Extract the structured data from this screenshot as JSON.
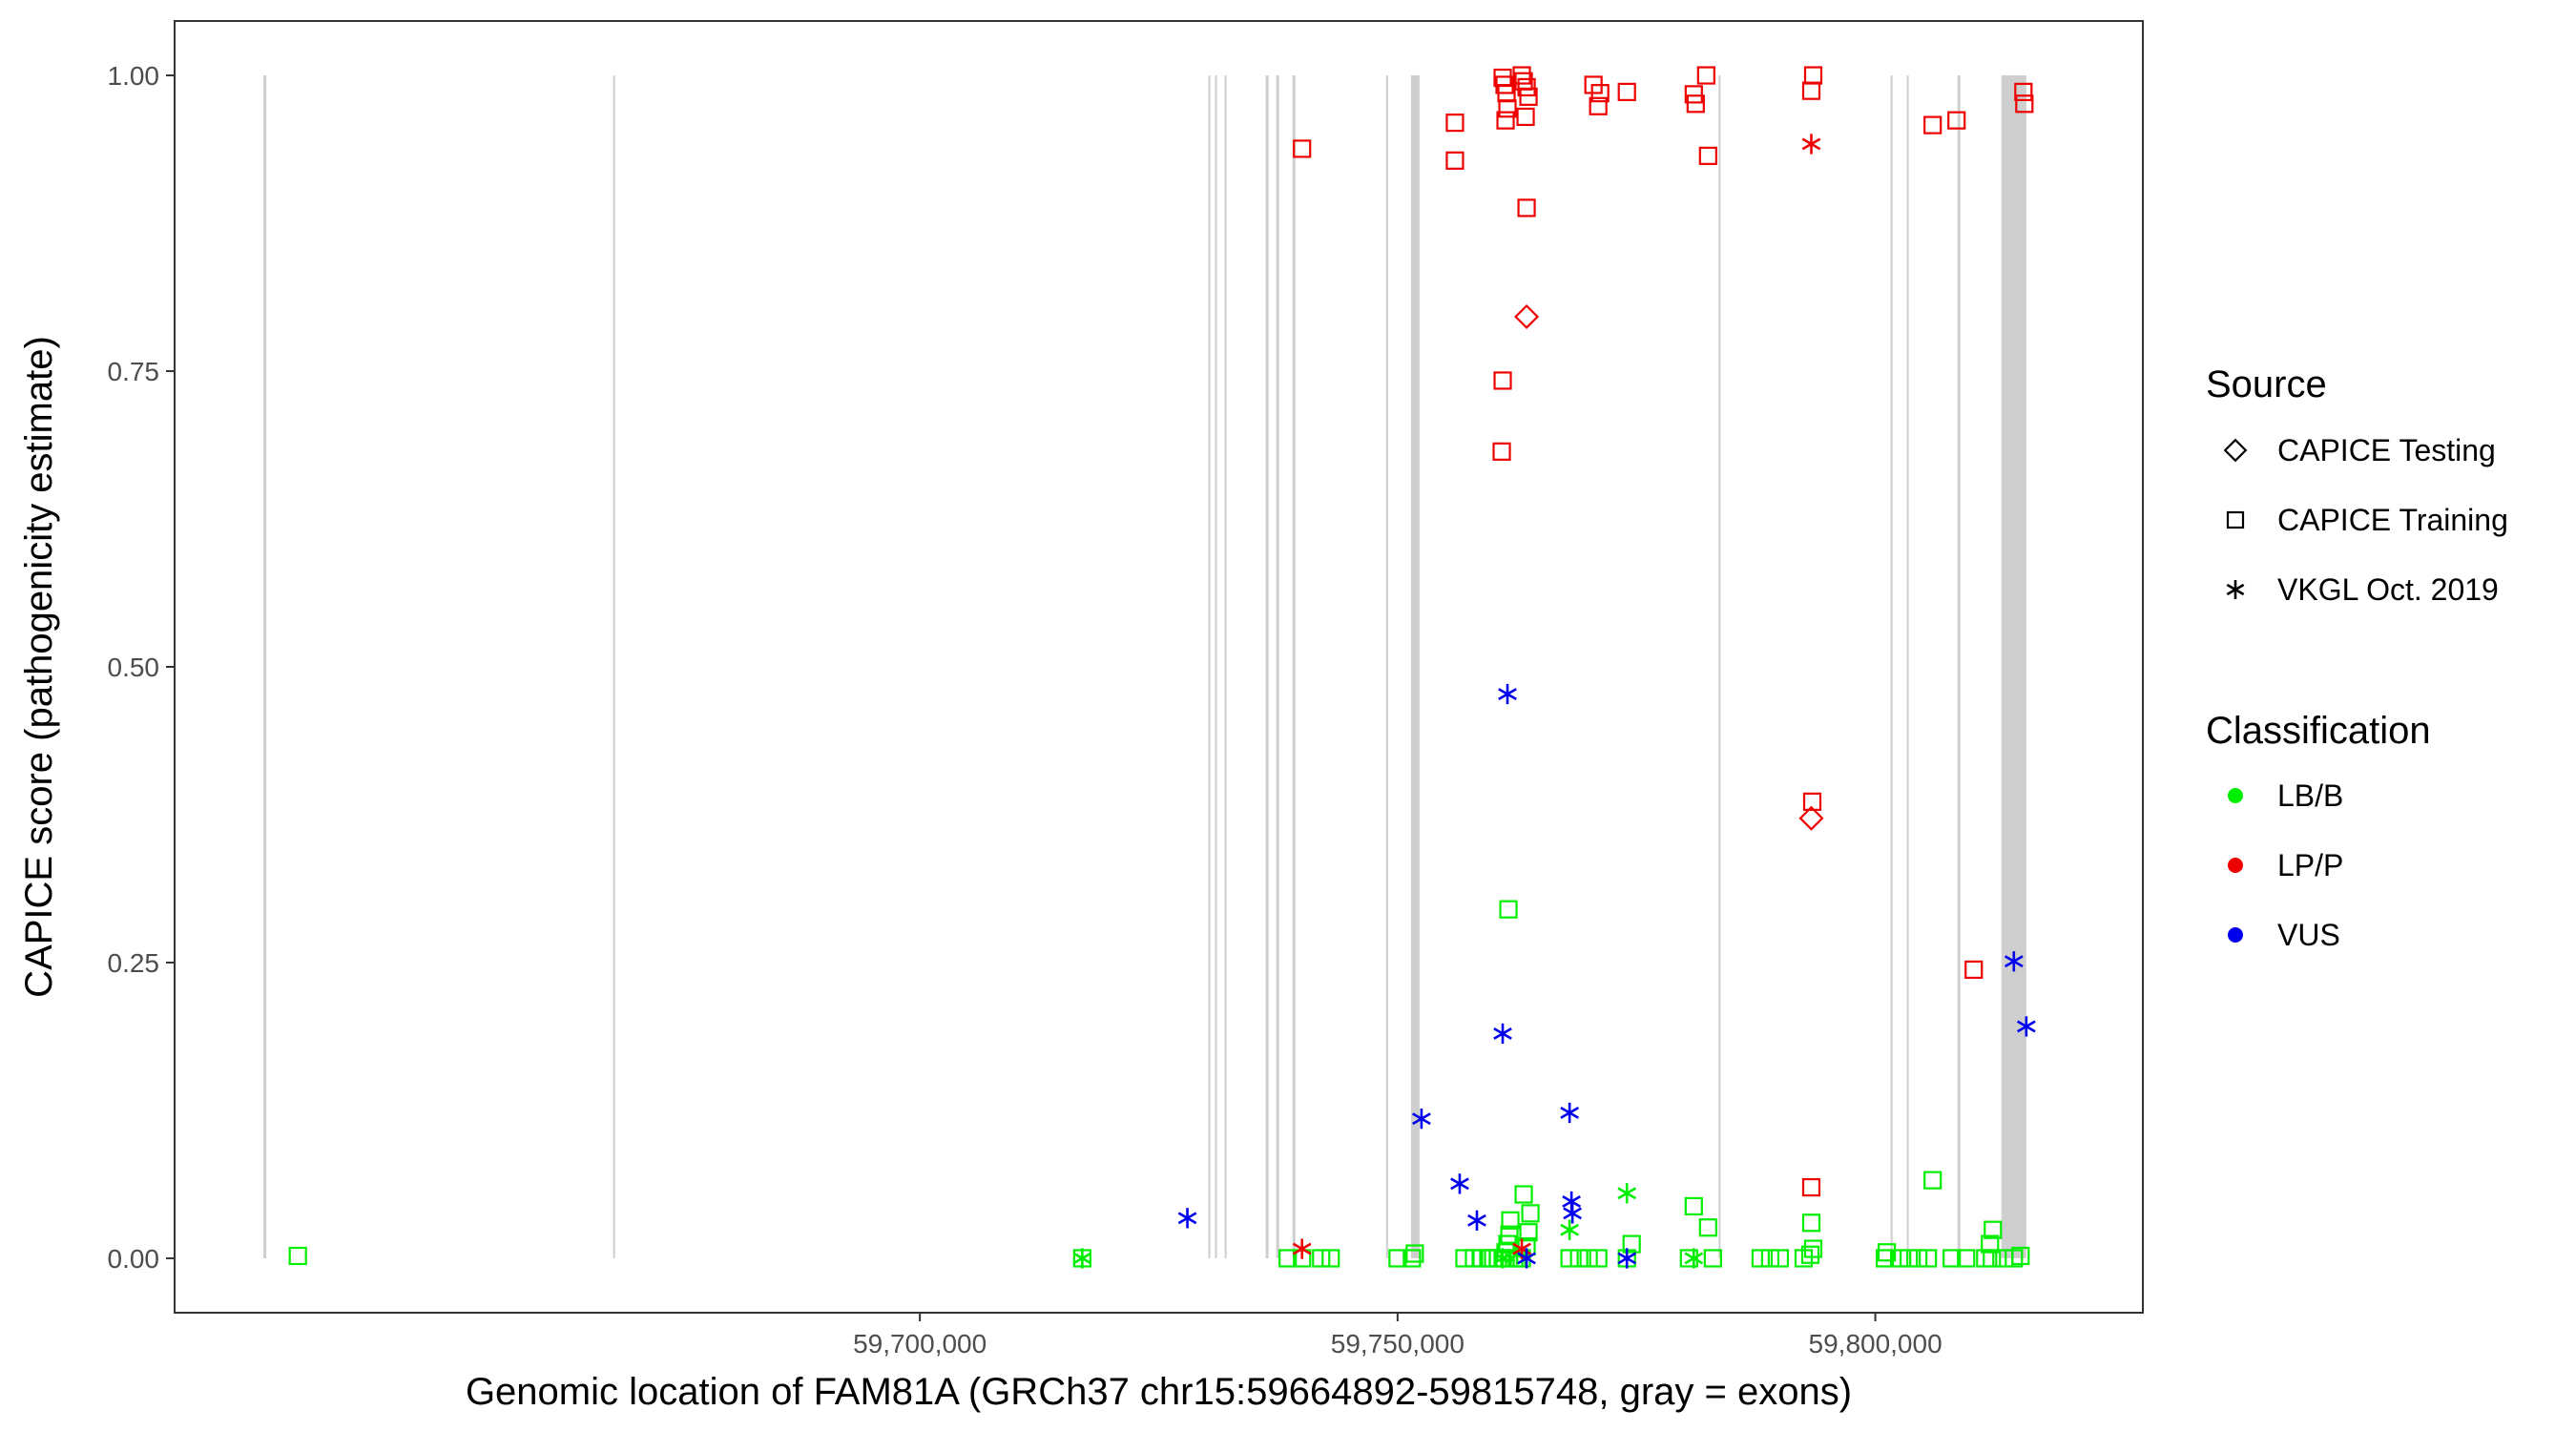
{
  "chart_data": {
    "type": "scatter",
    "xlabel": "Genomic location of FAM81A (GRCh37 chr15:59664892-59815748, gray = exons)",
    "ylabel": "CAPICE score (pathogenicity estimate)",
    "xlim": [
      59622000,
      59828000
    ],
    "ylim": [
      -0.046,
      1.046
    ],
    "x_ticks": [
      {
        "value": 59700000,
        "label": "59,700,000"
      },
      {
        "value": 59750000,
        "label": "59,750,000"
      },
      {
        "value": 59800000,
        "label": "59,800,000"
      }
    ],
    "y_ticks": [
      {
        "value": 0.0,
        "label": "0.00"
      },
      {
        "value": 0.25,
        "label": "0.25"
      },
      {
        "value": 0.5,
        "label": "0.50"
      },
      {
        "value": 0.75,
        "label": "0.75"
      },
      {
        "value": 1.0,
        "label": "1.00"
      }
    ],
    "grid": false,
    "exons": [
      [
        59631300,
        59631600
      ],
      [
        59667900,
        59668100
      ],
      [
        59730200,
        59730400
      ],
      [
        59730900,
        59731100
      ],
      [
        59731900,
        59732100
      ],
      [
        59736200,
        59736500
      ],
      [
        59737300,
        59737600
      ],
      [
        59739000,
        59739300
      ],
      [
        59748800,
        59749000
      ],
      [
        59751400,
        59752300
      ],
      [
        59783600,
        59783800
      ],
      [
        59801600,
        59801800
      ],
      [
        59803300,
        59803500
      ],
      [
        59808600,
        59808900
      ],
      [
        59813200,
        59815800
      ]
    ],
    "legends": [
      {
        "title": "Source",
        "items": [
          {
            "label": "CAPICE Testing",
            "shape": "diamond"
          },
          {
            "label": "CAPICE Training",
            "shape": "square"
          },
          {
            "label": "VKGL Oct. 2019",
            "shape": "asterisk"
          }
        ]
      },
      {
        "title": "Classification",
        "items": [
          {
            "label": "LB/B",
            "color": "#00ee00"
          },
          {
            "label": "LP/P",
            "color": "#ee0000"
          },
          {
            "label": "VUS",
            "color": "#0000ee"
          }
        ]
      }
    ],
    "legend_position": "right",
    "series": [
      {
        "source": "CAPICE Training",
        "classification": "LB/B",
        "shape": "square",
        "color": "#00ee00",
        "points": [
          [
            59634900,
            0.002
          ],
          [
            59717000,
            0.0
          ],
          [
            59738500,
            0.0
          ],
          [
            59740000,
            0.0
          ],
          [
            59742000,
            0.0
          ],
          [
            59743000,
            0.0
          ],
          [
            59750000,
            0.0
          ],
          [
            59751500,
            0.0
          ],
          [
            59751800,
            0.004
          ],
          [
            59757000,
            0.0
          ],
          [
            59758000,
            0.0
          ],
          [
            59758800,
            0.0
          ],
          [
            59759500,
            0.0
          ],
          [
            59760000,
            0.0
          ],
          [
            59760500,
            0.0
          ],
          [
            59761000,
            0.0
          ],
          [
            59761300,
            0.005
          ],
          [
            59761500,
            0.012
          ],
          [
            59761700,
            0.02
          ],
          [
            59761800,
            0.032
          ],
          [
            59762200,
            0.0
          ],
          [
            59762500,
            0.0
          ],
          [
            59763000,
            0.0
          ],
          [
            59763500,
            0.01
          ],
          [
            59763700,
            0.022
          ],
          [
            59763900,
            0.038
          ],
          [
            59763200,
            0.054
          ],
          [
            59761600,
            0.295
          ],
          [
            59768000,
            0.0
          ],
          [
            59769000,
            0.0
          ],
          [
            59770000,
            0.0
          ],
          [
            59771000,
            0.0
          ],
          [
            59774000,
            0.0
          ],
          [
            59774500,
            0.012
          ],
          [
            59780500,
            0.0
          ],
          [
            59781000,
            0.044
          ],
          [
            59782500,
            0.026
          ],
          [
            59783000,
            0.0
          ],
          [
            59788000,
            0.0
          ],
          [
            59789000,
            0.0
          ],
          [
            59790000,
            0.0
          ],
          [
            59792500,
            0.0
          ],
          [
            59793200,
            0.003
          ],
          [
            59793500,
            0.008
          ],
          [
            59793300,
            0.03
          ],
          [
            59801000,
            0.0
          ],
          [
            59801200,
            0.005
          ],
          [
            59802500,
            0.0
          ],
          [
            59803500,
            0.0
          ],
          [
            59804500,
            0.0
          ],
          [
            59805500,
            0.0
          ],
          [
            59806000,
            0.066
          ],
          [
            59808000,
            0.0
          ],
          [
            59809500,
            0.0
          ],
          [
            59811500,
            0.0
          ],
          [
            59812200,
            0.0
          ],
          [
            59812000,
            0.012
          ],
          [
            59812300,
            0.024
          ],
          [
            59813500,
            0.0
          ],
          [
            59814500,
            0.0
          ],
          [
            59815200,
            0.002
          ]
        ]
      },
      {
        "source": "VKGL Oct. 2019",
        "classification": "LB/B",
        "shape": "asterisk",
        "color": "#00ee00",
        "points": [
          [
            59717000,
            0.0
          ],
          [
            59761000,
            0.0
          ],
          [
            59762500,
            0.003
          ],
          [
            59768000,
            0.024
          ],
          [
            59774000,
            0.055
          ],
          [
            59781000,
            0.0
          ]
        ]
      },
      {
        "source": "CAPICE Training",
        "classification": "LP/P",
        "shape": "square",
        "color": "#ee0000",
        "points": [
          [
            59740000,
            0.938
          ],
          [
            59756000,
            0.96
          ],
          [
            59756000,
            0.928
          ],
          [
            59761000,
            0.998
          ],
          [
            59761200,
            0.992
          ],
          [
            59761400,
            0.985
          ],
          [
            59761500,
            0.972
          ],
          [
            59761300,
            0.962
          ],
          [
            59761000,
            0.742
          ],
          [
            59760900,
            0.682
          ],
          [
            59763000,
            1.0
          ],
          [
            59763200,
            0.995
          ],
          [
            59763500,
            0.99
          ],
          [
            59763700,
            0.982
          ],
          [
            59763400,
            0.965
          ],
          [
            59763500,
            0.888
          ],
          [
            59770500,
            0.992
          ],
          [
            59771200,
            0.985
          ],
          [
            59771000,
            0.974
          ],
          [
            59774000,
            0.986
          ],
          [
            59781000,
            0.984
          ],
          [
            59781200,
            0.976
          ],
          [
            59782300,
            1.0
          ],
          [
            59782500,
            0.932
          ],
          [
            59793500,
            1.0
          ],
          [
            59793300,
            0.987
          ],
          [
            59793400,
            0.386
          ],
          [
            59793300,
            0.06
          ],
          [
            59806000,
            0.958
          ],
          [
            59808500,
            0.962
          ],
          [
            59810300,
            0.244
          ],
          [
            59815500,
            0.986
          ],
          [
            59815600,
            0.976
          ]
        ]
      },
      {
        "source": "CAPICE Testing",
        "classification": "LP/P",
        "shape": "diamond",
        "color": "#ee0000",
        "points": [
          [
            59763500,
            0.796
          ],
          [
            59793300,
            0.372
          ]
        ]
      },
      {
        "source": "VKGL Oct. 2019",
        "classification": "LP/P",
        "shape": "asterisk",
        "color": "#ee0000",
        "points": [
          [
            59740000,
            0.008
          ],
          [
            59763000,
            0.008
          ],
          [
            59793300,
            0.942
          ]
        ]
      },
      {
        "source": "VKGL Oct. 2019",
        "classification": "VUS",
        "shape": "asterisk",
        "color": "#0000ee",
        "points": [
          [
            59728000,
            0.034
          ],
          [
            59752500,
            0.118
          ],
          [
            59756500,
            0.063
          ],
          [
            59758300,
            0.032
          ],
          [
            59761000,
            0.19
          ],
          [
            59761500,
            0.477
          ],
          [
            59763500,
            0.0
          ],
          [
            59768000,
            0.123
          ],
          [
            59768200,
            0.048
          ],
          [
            59768300,
            0.038
          ],
          [
            59774000,
            0.0
          ],
          [
            59814500,
            0.251
          ],
          [
            59815800,
            0.196
          ]
        ]
      }
    ]
  }
}
